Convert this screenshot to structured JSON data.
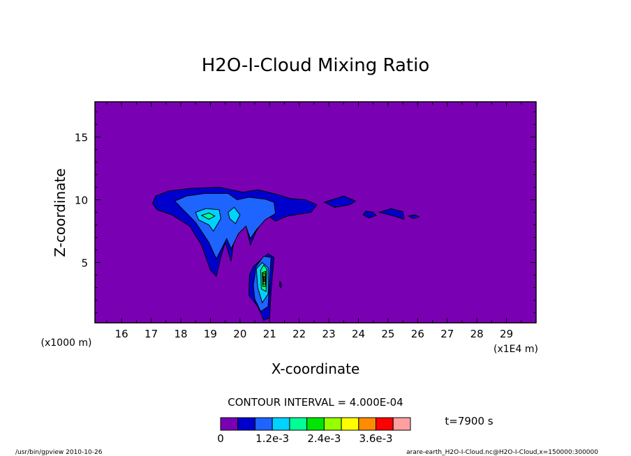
{
  "chart_data": {
    "type": "heatmap",
    "title": "H2O-I-Cloud Mixing Ratio",
    "xlabel": "X-coordinate",
    "ylabel": "Z-coordinate",
    "x_unit_label": "(x1E4 m)",
    "y_unit_label": "(x1000 m)",
    "xlim": [
      15.1,
      30
    ],
    "ylim": [
      0.2,
      17.8
    ],
    "x_ticks": [
      16,
      17,
      18,
      19,
      20,
      21,
      22,
      23,
      24,
      25,
      26,
      27,
      28,
      29
    ],
    "y_ticks": [
      5,
      10,
      15
    ],
    "contour_interval": "CONTOUR INTERVAL = 4.000E-04",
    "time_label": "t=7900 s",
    "colorbar_labels": [
      {
        "value": 0,
        "text": "0"
      },
      {
        "value": 0.0012,
        "text": "1.2e-3"
      },
      {
        "value": 0.0024,
        "text": "2.4e-3"
      },
      {
        "value": 0.0036,
        "text": "3.6e-3"
      }
    ],
    "colorbar_levels": [
      0,
      0.0004,
      0.0008,
      0.0012,
      0.0016,
      0.002,
      0.0024,
      0.0028,
      0.0032,
      0.0036,
      0.004,
      0.0044
    ],
    "colorbar_colors": [
      "#7a00b4",
      "#0000cc",
      "#1e64ff",
      "#00d2ff",
      "#00ff96",
      "#00e600",
      "#96ff00",
      "#ffff00",
      "#ff8c00",
      "#ff0000",
      "#ffa0a0"
    ],
    "regions": [
      {
        "level": 1,
        "points": [
          [
            17.05,
            9.7
          ],
          [
            17.15,
            10.3
          ],
          [
            17.6,
            10.7
          ],
          [
            18.3,
            10.9
          ],
          [
            19.3,
            11.0
          ],
          [
            20.1,
            10.6
          ],
          [
            20.6,
            10.8
          ],
          [
            21.3,
            10.4
          ],
          [
            21.7,
            10.1
          ],
          [
            22.2,
            10.0
          ],
          [
            22.6,
            9.6
          ],
          [
            22.4,
            9.0
          ],
          [
            21.6,
            8.7
          ],
          [
            21.2,
            8.3
          ],
          [
            20.9,
            8.8
          ],
          [
            20.55,
            7.5
          ],
          [
            20.35,
            6.4
          ],
          [
            20.2,
            8.0
          ],
          [
            20.05,
            7.7
          ],
          [
            19.8,
            6.9
          ],
          [
            19.7,
            5.1
          ],
          [
            19.5,
            6.6
          ],
          [
            19.35,
            5.4
          ],
          [
            19.2,
            3.9
          ],
          [
            19.0,
            4.4
          ],
          [
            18.7,
            6.4
          ],
          [
            18.3,
            7.9
          ],
          [
            17.7,
            8.8
          ],
          [
            17.2,
            9.2
          ]
        ]
      },
      {
        "level": 1,
        "points": [
          [
            20.32,
            4.0
          ],
          [
            20.3,
            2.4
          ],
          [
            20.6,
            1.5
          ],
          [
            20.8,
            0.4
          ],
          [
            21.0,
            0.6
          ],
          [
            21.05,
            2.8
          ],
          [
            21.15,
            5.4
          ],
          [
            20.95,
            5.7
          ],
          [
            20.6,
            5.0
          ],
          [
            20.45,
            4.7
          ]
        ]
      },
      {
        "level": 1,
        "points": [
          [
            23.5,
            10.3
          ],
          [
            23.9,
            9.9
          ],
          [
            23.7,
            9.6
          ],
          [
            23.2,
            9.4
          ],
          [
            22.85,
            9.8
          ]
        ]
      },
      {
        "level": 1,
        "points": [
          [
            24.25,
            9.1
          ],
          [
            24.5,
            9.0
          ],
          [
            24.6,
            8.75
          ],
          [
            24.35,
            8.55
          ],
          [
            24.15,
            8.8
          ]
        ]
      },
      {
        "level": 1,
        "points": [
          [
            24.7,
            9.0
          ],
          [
            25.1,
            9.3
          ],
          [
            25.5,
            9.05
          ],
          [
            25.55,
            8.45
          ],
          [
            25.2,
            8.7
          ]
        ]
      },
      {
        "level": 1,
        "points": [
          [
            25.9,
            8.8
          ],
          [
            26.05,
            8.65
          ],
          [
            25.85,
            8.5
          ],
          [
            25.7,
            8.7
          ]
        ]
      },
      {
        "level": 2,
        "points": [
          [
            17.8,
            9.9
          ],
          [
            18.2,
            10.3
          ],
          [
            18.8,
            10.5
          ],
          [
            19.6,
            10.5
          ],
          [
            19.9,
            10.0
          ],
          [
            20.3,
            10.2
          ],
          [
            20.85,
            10.05
          ],
          [
            21.15,
            9.8
          ],
          [
            21.2,
            8.9
          ],
          [
            20.85,
            8.4
          ],
          [
            20.55,
            7.6
          ],
          [
            20.35,
            6.9
          ],
          [
            20.2,
            7.9
          ],
          [
            19.95,
            7.3
          ],
          [
            19.7,
            6.1
          ],
          [
            19.55,
            6.9
          ],
          [
            19.2,
            5.3
          ],
          [
            18.95,
            6.6
          ],
          [
            18.5,
            8.2
          ],
          [
            18.0,
            9.4
          ]
        ]
      },
      {
        "level": 2,
        "points": [
          [
            20.45,
            3.2
          ],
          [
            20.5,
            2.1
          ],
          [
            20.7,
            1.1
          ],
          [
            20.95,
            1.5
          ],
          [
            21.0,
            3.9
          ],
          [
            21.05,
            5.4
          ],
          [
            20.8,
            5.5
          ],
          [
            20.55,
            4.7
          ]
        ]
      },
      {
        "level": 3,
        "points": [
          [
            18.5,
            9.0
          ],
          [
            18.85,
            9.3
          ],
          [
            19.3,
            9.2
          ],
          [
            19.35,
            8.5
          ],
          [
            19.1,
            7.5
          ],
          [
            18.95,
            8.0
          ],
          [
            18.6,
            8.4
          ]
        ]
      },
      {
        "level": 3,
        "points": [
          [
            19.6,
            9.0
          ],
          [
            19.8,
            9.4
          ],
          [
            20.0,
            8.8
          ],
          [
            19.85,
            8.1
          ],
          [
            19.65,
            8.5
          ]
        ]
      },
      {
        "level": 3,
        "points": [
          [
            20.55,
            4.5
          ],
          [
            20.6,
            3.0
          ],
          [
            20.75,
            1.8
          ],
          [
            20.95,
            2.5
          ],
          [
            20.95,
            4.6
          ],
          [
            20.75,
            5.0
          ]
        ]
      },
      {
        "level": 4,
        "points": [
          [
            18.7,
            8.75
          ],
          [
            18.95,
            8.95
          ],
          [
            19.15,
            8.7
          ],
          [
            18.95,
            8.45
          ]
        ]
      },
      {
        "level": 4,
        "points": [
          [
            20.7,
            4.4
          ],
          [
            20.72,
            2.9
          ],
          [
            20.88,
            2.7
          ],
          [
            20.9,
            4.5
          ],
          [
            20.8,
            4.8
          ]
        ]
      },
      {
        "level": 5,
        "points": [
          [
            20.75,
            4.2
          ],
          [
            20.77,
            3.1
          ],
          [
            20.87,
            3.1
          ],
          [
            20.87,
            4.3
          ]
        ]
      },
      {
        "level": 6,
        "points": [
          [
            20.78,
            4.1
          ],
          [
            20.79,
            3.3
          ],
          [
            20.85,
            3.3
          ],
          [
            20.85,
            4.1
          ]
        ]
      },
      {
        "level": 7,
        "points": [
          [
            20.8,
            3.9
          ],
          [
            20.805,
            3.5
          ],
          [
            20.835,
            3.5
          ],
          [
            20.835,
            3.9
          ]
        ]
      },
      {
        "level": 1,
        "points": [
          [
            21.35,
            3.5
          ],
          [
            21.4,
            3.3
          ],
          [
            21.38,
            3.0
          ],
          [
            21.33,
            3.2
          ]
        ]
      }
    ]
  },
  "footer": {
    "left": "/usr/bin/gpview   2010-10-26",
    "right": "arare-earth_H2O-I-Cloud.nc@H2O-I-Cloud,x=150000:300000"
  }
}
